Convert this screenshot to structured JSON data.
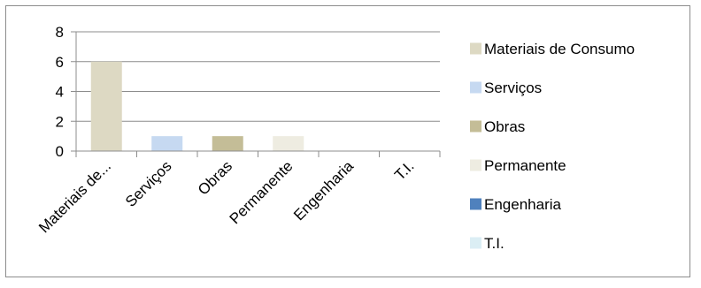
{
  "chart_data": {
    "type": "bar",
    "categories": [
      "Materiais de...",
      "Serviços",
      "Obras",
      "Permanente",
      "Engenharia",
      "T.I."
    ],
    "values": [
      6,
      1,
      1,
      1,
      0,
      0
    ],
    "colors": [
      "#ddd9c3",
      "#c6d9f1",
      "#c4bd97",
      "#eeece1",
      "#4f81bd",
      "#dbeef4"
    ],
    "ylim": [
      0,
      8
    ],
    "yticks": [
      "0",
      "2",
      "4",
      "6",
      "8"
    ],
    "grid": true,
    "legend_position": "right",
    "legend": [
      "Materiais de Consumo",
      "Serviços",
      "Obras",
      "Permanente",
      "Engenharia",
      "T.I."
    ]
  }
}
